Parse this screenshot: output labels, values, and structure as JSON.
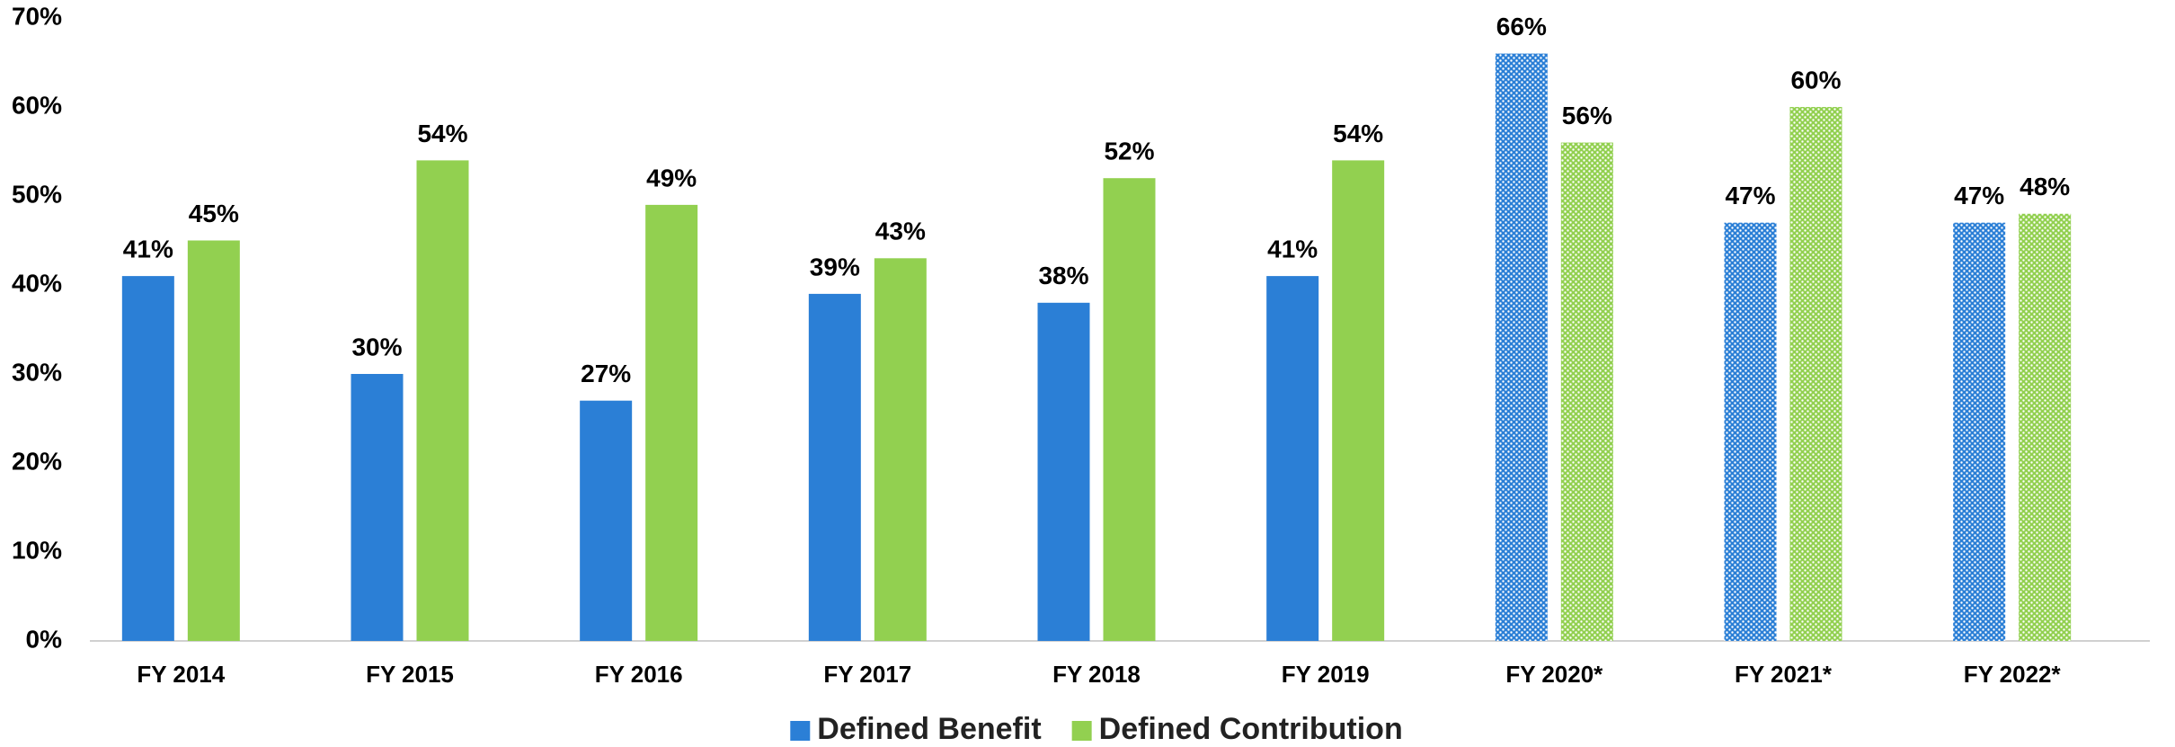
{
  "chart_data": {
    "type": "bar",
    "categories": [
      "FY 2014",
      "FY 2015",
      "FY 2016",
      "FY 2017",
      "FY 2018",
      "FY 2019",
      "FY 2020*",
      "FY 2021*",
      "FY 2022*"
    ],
    "series": [
      {
        "name": "Defined Benefit",
        "color": "#2b7fd6",
        "values": [
          41,
          30,
          27,
          39,
          38,
          41,
          66,
          47,
          47
        ],
        "value_labels": [
          "41%",
          "30%",
          "27%",
          "39%",
          "38%",
          "41%",
          "66%",
          "47%",
          "47%"
        ]
      },
      {
        "name": "Defined Contribution",
        "color": "#92d050",
        "values": [
          45,
          54,
          49,
          43,
          52,
          54,
          56,
          60,
          48
        ],
        "value_labels": [
          "45%",
          "54%",
          "49%",
          "43%",
          "52%",
          "54%",
          "56%",
          "60%",
          "48%"
        ]
      }
    ],
    "hatched": [
      false,
      false,
      false,
      false,
      false,
      false,
      true,
      true,
      true
    ],
    "ylim": [
      0,
      70
    ],
    "yticks": [
      {
        "value": 0,
        "label": "0%"
      },
      {
        "value": 10,
        "label": "10%"
      },
      {
        "value": 20,
        "label": "20%"
      },
      {
        "value": 30,
        "label": "30%"
      },
      {
        "value": 40,
        "label": "40%"
      },
      {
        "value": 50,
        "label": "50%"
      },
      {
        "value": 60,
        "label": "60%"
      },
      {
        "value": 70,
        "label": "70%"
      }
    ],
    "grid": false,
    "legend": "bottom"
  }
}
